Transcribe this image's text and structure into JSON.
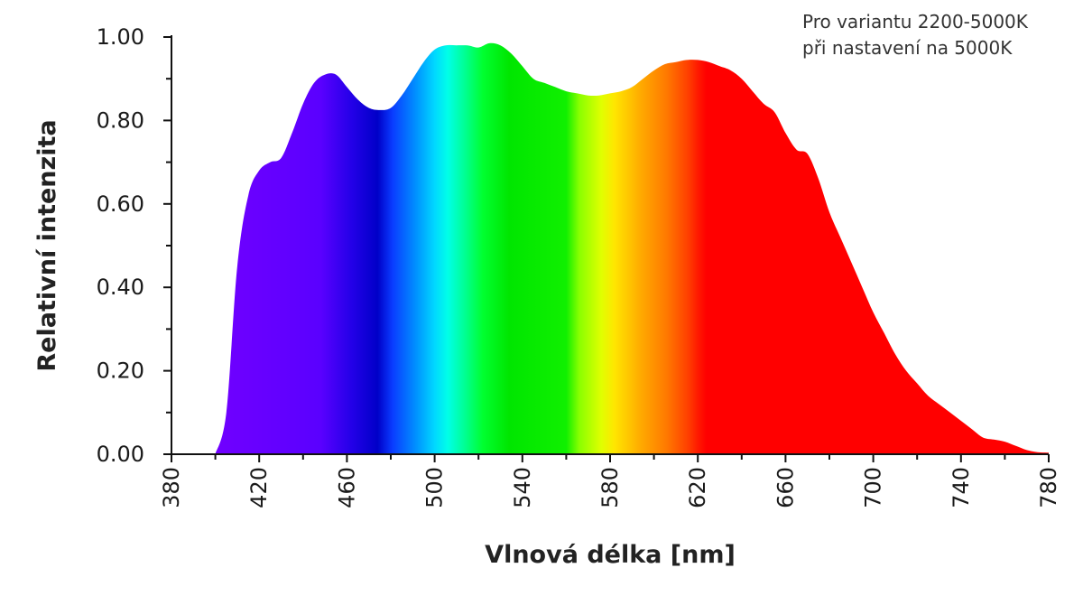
{
  "annotation": {
    "line1": "Pro variantu 2200-5000K",
    "line2": "při nastavení na 5000K"
  },
  "chart_data": {
    "type": "area",
    "xlabel": "Vlnová délka [nm]",
    "ylabel": "Relativní intenzita",
    "xlim": [
      380,
      780
    ],
    "ylim": [
      0,
      1
    ],
    "x_ticks": [
      380,
      420,
      460,
      500,
      540,
      580,
      620,
      660,
      700,
      740,
      780
    ],
    "y_ticks": [
      "0.00",
      "0.20",
      "0.40",
      "0.60",
      "0.80",
      "1.00"
    ],
    "grid": false,
    "fill": "visible-spectrum gradient",
    "series": [
      {
        "x": [
          400,
          405,
          410,
          415,
          420,
          425,
          430,
          435,
          440,
          445,
          450,
          455,
          460,
          465,
          470,
          475,
          480,
          485,
          490,
          495,
          500,
          505,
          510,
          515,
          520,
          525,
          530,
          535,
          540,
          545,
          550,
          555,
          560,
          565,
          570,
          575,
          580,
          585,
          590,
          595,
          600,
          605,
          610,
          615,
          620,
          625,
          630,
          635,
          640,
          645,
          650,
          655,
          660,
          665,
          670,
          675,
          680,
          685,
          690,
          695,
          700,
          705,
          710,
          715,
          720,
          725,
          730,
          735,
          740,
          745,
          750,
          755,
          760,
          765,
          770,
          775,
          780
        ],
        "y": [
          0.0,
          0.1,
          0.45,
          0.62,
          0.68,
          0.7,
          0.71,
          0.77,
          0.84,
          0.89,
          0.91,
          0.91,
          0.88,
          0.85,
          0.83,
          0.825,
          0.83,
          0.86,
          0.9,
          0.94,
          0.97,
          0.98,
          0.98,
          0.98,
          0.975,
          0.985,
          0.98,
          0.96,
          0.93,
          0.9,
          0.89,
          0.88,
          0.87,
          0.865,
          0.86,
          0.86,
          0.865,
          0.87,
          0.88,
          0.9,
          0.92,
          0.935,
          0.94,
          0.945,
          0.945,
          0.94,
          0.93,
          0.92,
          0.9,
          0.87,
          0.84,
          0.82,
          0.77,
          0.73,
          0.72,
          0.66,
          0.58,
          0.52,
          0.46,
          0.4,
          0.34,
          0.29,
          0.24,
          0.2,
          0.17,
          0.14,
          0.12,
          0.1,
          0.08,
          0.06,
          0.04,
          0.035,
          0.03,
          0.02,
          0.01,
          0.005,
          0.004
        ]
      }
    ]
  }
}
